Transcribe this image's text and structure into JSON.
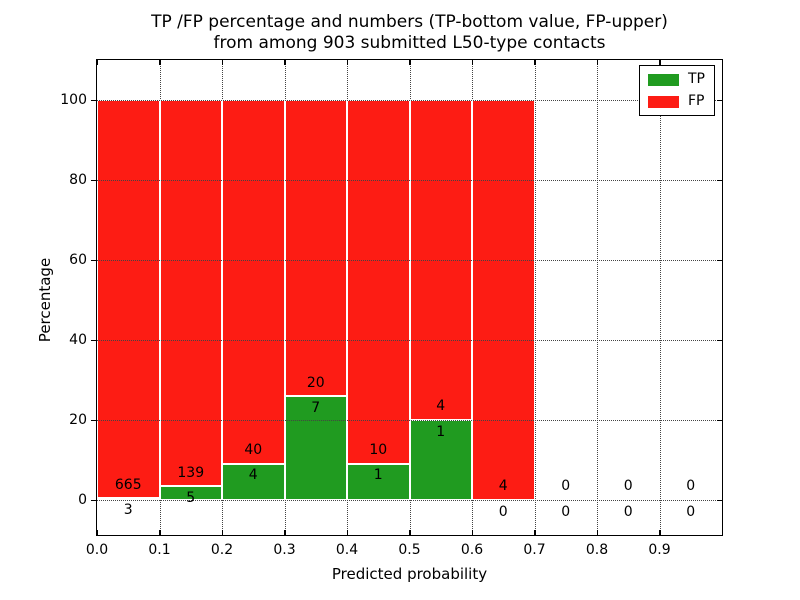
{
  "title": {
    "line1": "TP /FP percentage and numbers (TP-bottom value, FP-upper)",
    "line2": "from among 903 submitted L50-type contacts"
  },
  "axes": {
    "xlabel": "Predicted probability",
    "ylabel": "Percentage",
    "xticks": [
      {
        "value": 0.0,
        "label": "0.0"
      },
      {
        "value": 0.1,
        "label": "0.1"
      },
      {
        "value": 0.2,
        "label": "0.2"
      },
      {
        "value": 0.3,
        "label": "0.3"
      },
      {
        "value": 0.4,
        "label": "0.4"
      },
      {
        "value": 0.5,
        "label": "0.5"
      },
      {
        "value": 0.6,
        "label": "0.6"
      },
      {
        "value": 0.7,
        "label": "0.7"
      },
      {
        "value": 0.8,
        "label": "0.8"
      },
      {
        "value": 0.9,
        "label": "0.9"
      }
    ],
    "yticks": [
      {
        "value": 0,
        "label": "0"
      },
      {
        "value": 20,
        "label": "20"
      },
      {
        "value": 40,
        "label": "40"
      },
      {
        "value": 60,
        "label": "60"
      },
      {
        "value": 80,
        "label": "80"
      },
      {
        "value": 100,
        "label": "100"
      }
    ]
  },
  "legend": [
    {
      "label": "TP",
      "color": "#209b20"
    },
    {
      "label": "FP",
      "color": "#fd1c14"
    }
  ],
  "colors": {
    "tp": "#209b20",
    "fp": "#fd1c14",
    "bar_edge": "#ffffff",
    "grid": "#444444"
  },
  "chart_data": {
    "type": "bar",
    "stacked": true,
    "title": "TP /FP percentage and numbers (TP-bottom value, FP-upper) from among 903 submitted L50-type contacts",
    "xlabel": "Predicted probability",
    "ylabel": "Percentage",
    "total_contacts": 903,
    "xlim": [
      0.0,
      1.0
    ],
    "ylim": [
      -8.75,
      110
    ],
    "grid": true,
    "legend_position": "upper right",
    "label_rule": "FP count printed above TP-bar top, TP count printed below TP-bar top",
    "bins": [
      {
        "range": [
          0.0,
          0.1
        ],
        "tp_count": 3,
        "fp_count": 665,
        "tp_pct": 0.45,
        "fp_pct": 99.55,
        "has_bar": true
      },
      {
        "range": [
          0.1,
          0.2
        ],
        "tp_count": 5,
        "fp_count": 139,
        "tp_pct": 3.47,
        "fp_pct": 96.53,
        "has_bar": true
      },
      {
        "range": [
          0.2,
          0.3
        ],
        "tp_count": 4,
        "fp_count": 40,
        "tp_pct": 9.09,
        "fp_pct": 90.91,
        "has_bar": true
      },
      {
        "range": [
          0.3,
          0.4
        ],
        "tp_count": 7,
        "fp_count": 20,
        "tp_pct": 25.93,
        "fp_pct": 74.07,
        "has_bar": true
      },
      {
        "range": [
          0.4,
          0.5
        ],
        "tp_count": 1,
        "fp_count": 10,
        "tp_pct": 9.09,
        "fp_pct": 90.91,
        "has_bar": true
      },
      {
        "range": [
          0.5,
          0.6
        ],
        "tp_count": 1,
        "fp_count": 4,
        "tp_pct": 20.0,
        "fp_pct": 80.0,
        "has_bar": true
      },
      {
        "range": [
          0.6,
          0.7
        ],
        "tp_count": 0,
        "fp_count": 4,
        "tp_pct": 0.0,
        "fp_pct": 100.0,
        "has_bar": true
      },
      {
        "range": [
          0.7,
          0.8
        ],
        "tp_count": 0,
        "fp_count": 0,
        "tp_pct": 0.0,
        "fp_pct": 0.0,
        "has_bar": false
      },
      {
        "range": [
          0.8,
          0.9
        ],
        "tp_count": 0,
        "fp_count": 0,
        "tp_pct": 0.0,
        "fp_pct": 0.0,
        "has_bar": false
      },
      {
        "range": [
          0.9,
          1.0
        ],
        "tp_count": 0,
        "fp_count": 0,
        "tp_pct": 0.0,
        "fp_pct": 0.0,
        "has_bar": false
      }
    ]
  }
}
